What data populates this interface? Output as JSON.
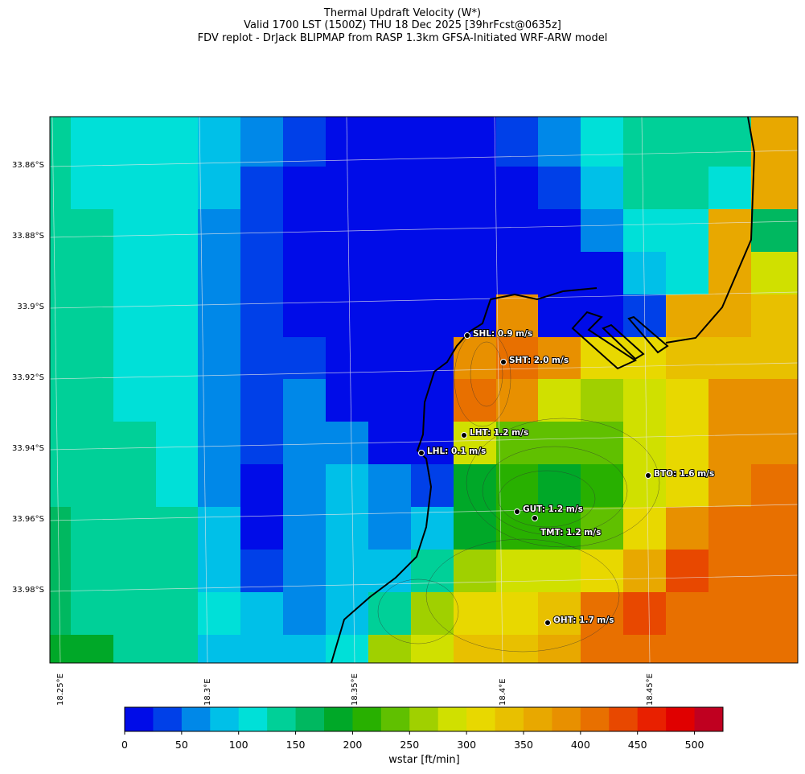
{
  "title": {
    "line1": "Thermal Updraft Velocity (W*)",
    "line2": "Valid 1700 LST (1500Z) THU 18 Dec 2025 [39hrFcst@0635z]",
    "line3": "FDV replot - DrJack BLIPMAP from RASP 1.3km GFSA-Initiated WRF-ARW model"
  },
  "chart_data": {
    "type": "heatmap",
    "variable": "wstar",
    "lat_ticks": [
      "33.86°S",
      "33.88°S",
      "33.9°S",
      "33.92°S",
      "33.94°S",
      "33.96°S",
      "33.98°S"
    ],
    "lon_ticks": [
      "18.25°E",
      "18.3°E",
      "18.35°E",
      "18.4°E",
      "18.45°E"
    ],
    "colorbar": {
      "label": "wstar [ft/min]",
      "ticks": [
        "0",
        "50",
        "100",
        "150",
        "200",
        "250",
        "300",
        "350",
        "400",
        "450",
        "500"
      ],
      "range": [
        0,
        525
      ],
      "step": 25,
      "colors": [
        "#000ce8",
        "#0040e8",
        "#0088e8",
        "#00c0e8",
        "#00e0d8",
        "#00d098",
        "#00b860",
        "#00a828",
        "#28b000",
        "#60c000",
        "#a0d000",
        "#d0e000",
        "#e8d800",
        "#e8c000",
        "#e8a800",
        "#e89000",
        "#e87000",
        "#e84800",
        "#e82000",
        "#e00000",
        "#c00020"
      ]
    },
    "grid_wstar_ft_min": [
      [
        125,
        100,
        100,
        100,
        75,
        50,
        25,
        0,
        0,
        0,
        0,
        25,
        50,
        100,
        125,
        125,
        125,
        350
      ],
      [
        125,
        100,
        100,
        100,
        75,
        25,
        0,
        0,
        0,
        0,
        0,
        0,
        25,
        75,
        125,
        125,
        100,
        350
      ],
      [
        125,
        125,
        100,
        100,
        50,
        25,
        0,
        0,
        0,
        0,
        0,
        0,
        0,
        50,
        100,
        100,
        350,
        150
      ],
      [
        125,
        125,
        100,
        100,
        50,
        25,
        0,
        0,
        0,
        0,
        0,
        0,
        0,
        0,
        75,
        100,
        350,
        275
      ],
      [
        125,
        125,
        100,
        100,
        50,
        25,
        0,
        0,
        0,
        0,
        0,
        375,
        0,
        0,
        25,
        350,
        350,
        325
      ],
      [
        125,
        125,
        100,
        100,
        50,
        25,
        25,
        0,
        0,
        0,
        375,
        400,
        375,
        300,
        300,
        325,
        325,
        325
      ],
      [
        125,
        125,
        100,
        100,
        50,
        25,
        50,
        0,
        0,
        0,
        400,
        375,
        275,
        250,
        275,
        300,
        375,
        375
      ],
      [
        125,
        125,
        125,
        100,
        50,
        25,
        50,
        50,
        0,
        0,
        275,
        225,
        225,
        225,
        275,
        300,
        375,
        375
      ],
      [
        125,
        125,
        125,
        100,
        50,
        0,
        50,
        75,
        50,
        25,
        175,
        200,
        175,
        200,
        275,
        300,
        375,
        400
      ],
      [
        150,
        125,
        125,
        125,
        75,
        0,
        50,
        75,
        50,
        75,
        175,
        200,
        200,
        225,
        300,
        375,
        400,
        400
      ],
      [
        150,
        125,
        125,
        125,
        75,
        25,
        50,
        75,
        75,
        125,
        250,
        275,
        275,
        300,
        350,
        425,
        400,
        400
      ],
      [
        150,
        125,
        125,
        125,
        100,
        75,
        50,
        75,
        125,
        250,
        300,
        300,
        325,
        400,
        425,
        400,
        400,
        400
      ],
      [
        175,
        175,
        125,
        125,
        75,
        75,
        75,
        100,
        250,
        275,
        325,
        325,
        350,
        400,
        400,
        400,
        400,
        400
      ]
    ],
    "stations": [
      {
        "label": "SHL: 0.9 m/s"
      },
      {
        "label": "SHT: 2.0 m/s"
      },
      {
        "label": "LHT: 1.2 m/s"
      },
      {
        "label": "LHL: 0.1 m/s"
      },
      {
        "label": "BTO: 1.6 m/s"
      },
      {
        "label": "GUT: 1.2 m/s"
      },
      {
        "label": "TMT: 1.2 m/s"
      },
      {
        "label": "OHT: 1.7 m/s"
      }
    ]
  }
}
